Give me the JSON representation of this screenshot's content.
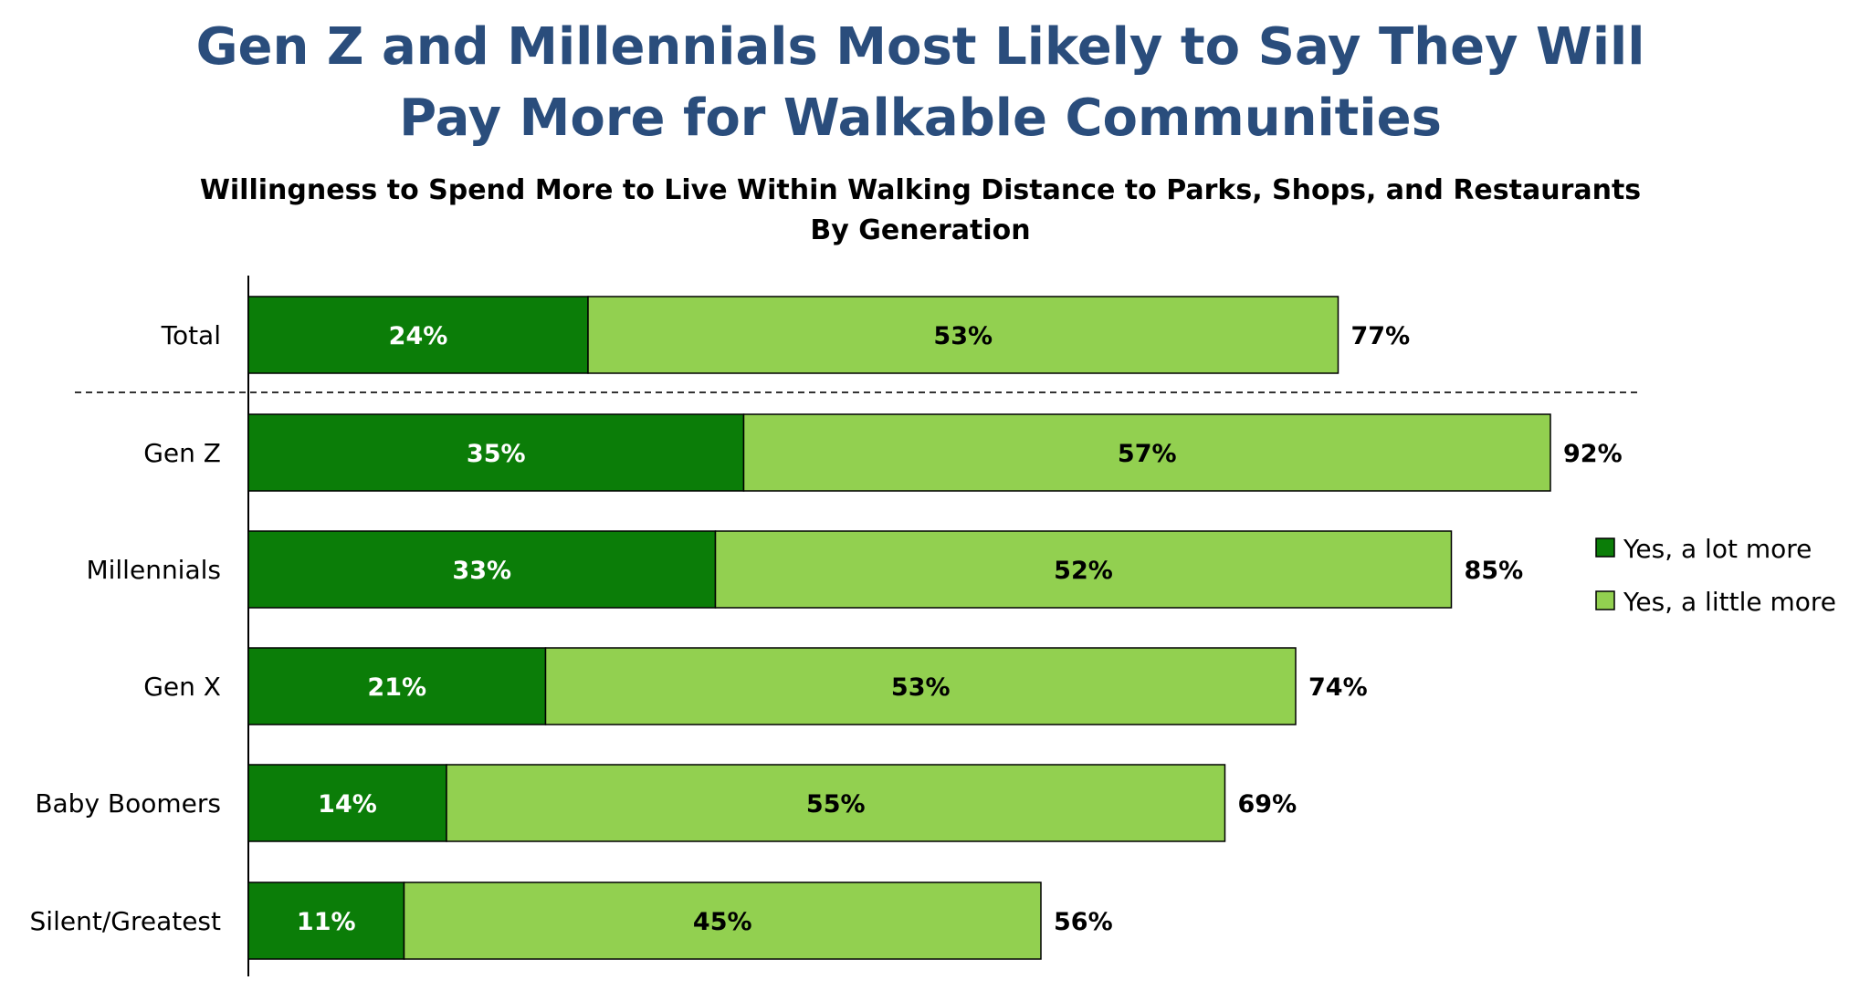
{
  "colors": {
    "lot": "#0b7d08",
    "little": "#92d050",
    "title": "#2a4d7c"
  },
  "chart_data": {
    "type": "bar",
    "orientation": "horizontal",
    "stacked": true,
    "title_lines": [
      "Gen Z and Millennials Most Likely to Say They Will",
      "Pay More for Walkable Communities"
    ],
    "subtitle_lines": [
      "Willingness to Spend More to Live Within Walking Distance to Parks, Shops, and Restaurants",
      "By Generation"
    ],
    "categories": [
      "Total",
      "Gen Z",
      "Millennials",
      "Gen X",
      "Baby Boomers",
      "Silent/Greatest"
    ],
    "series": [
      {
        "name": "Yes, a lot more",
        "values": [
          24,
          35,
          33,
          21,
          14,
          11
        ]
      },
      {
        "name": "Yes, a little more",
        "values": [
          53,
          57,
          52,
          53,
          55,
          45
        ]
      }
    ],
    "totals": [
      77,
      92,
      85,
      74,
      69,
      56
    ],
    "value_suffix": "%",
    "xlim": [
      0,
      100
    ],
    "grid": false,
    "legend_position": "right",
    "separator_after_category": "Total"
  }
}
